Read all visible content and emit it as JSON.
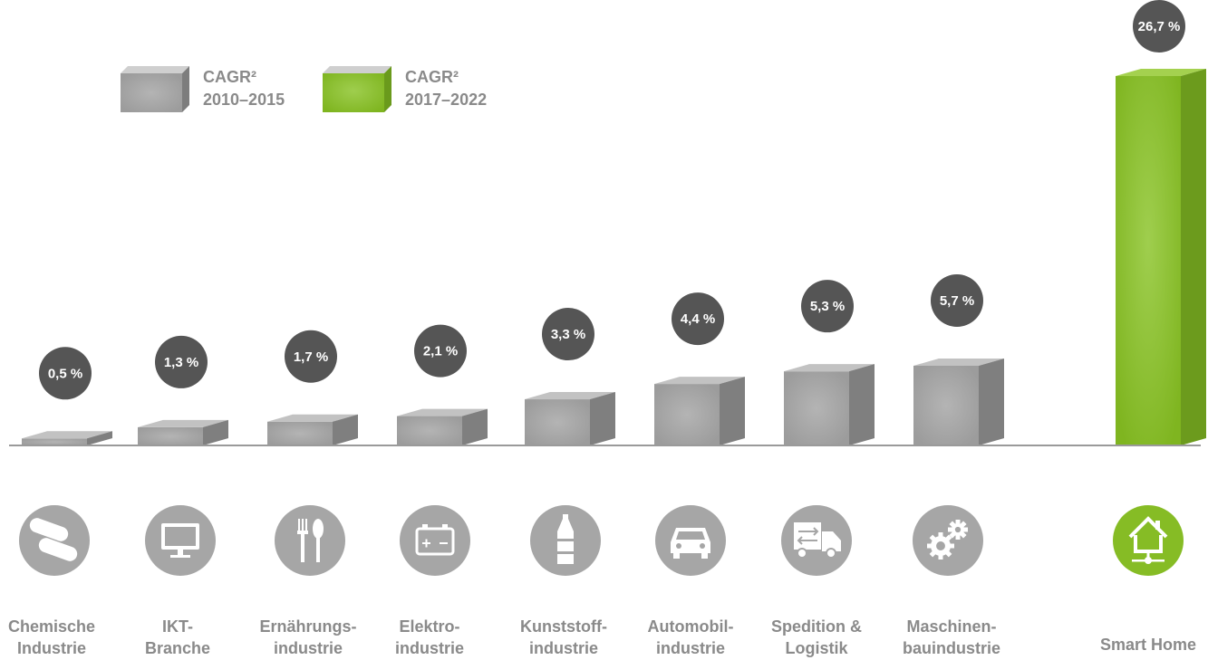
{
  "chart_data": {
    "type": "bar",
    "categories": [
      [
        "Chemische",
        "Industrie"
      ],
      [
        "IKT-",
        "Branche"
      ],
      [
        "Ernährungs-",
        "industrie"
      ],
      [
        "Elektro-",
        "industrie"
      ],
      [
        "Kunststoff-",
        "industrie"
      ],
      [
        "Automobil-",
        "industrie"
      ],
      [
        "Spedition &",
        "Logistik"
      ],
      [
        "Maschinen-",
        "bauindustrie"
      ],
      [
        "Smart Home"
      ]
    ],
    "values": [
      0.5,
      1.3,
      1.7,
      2.1,
      3.3,
      4.4,
      5.3,
      5.7,
      26.7
    ],
    "value_labels": [
      "0,5 %",
      "1,3 %",
      "1,7 %",
      "2,1 %",
      "3,3 %",
      "4,4 %",
      "5,3 %",
      "5,7 %",
      "26,7 %"
    ],
    "series_index": [
      0,
      0,
      0,
      0,
      0,
      0,
      0,
      0,
      1
    ],
    "legend": [
      {
        "label": "CAGR²",
        "period": "2010–2015",
        "color": "#a6a6a6"
      },
      {
        "label": "CAGR²",
        "period": "2017–2022",
        "color": "#86bc25"
      }
    ],
    "icons": [
      "pills-icon",
      "monitor-icon",
      "fork-spoon-icon",
      "battery-icon",
      "bottle-icon",
      "car-icon",
      "truck-icon",
      "gears-icon",
      "smart-home-icon"
    ],
    "colors": {
      "gray": "#a6a6a6",
      "green": "#86bc25",
      "bubble": "#555555",
      "text": "#8a8a8a"
    },
    "legend_position": "top-left",
    "grid": false
  }
}
